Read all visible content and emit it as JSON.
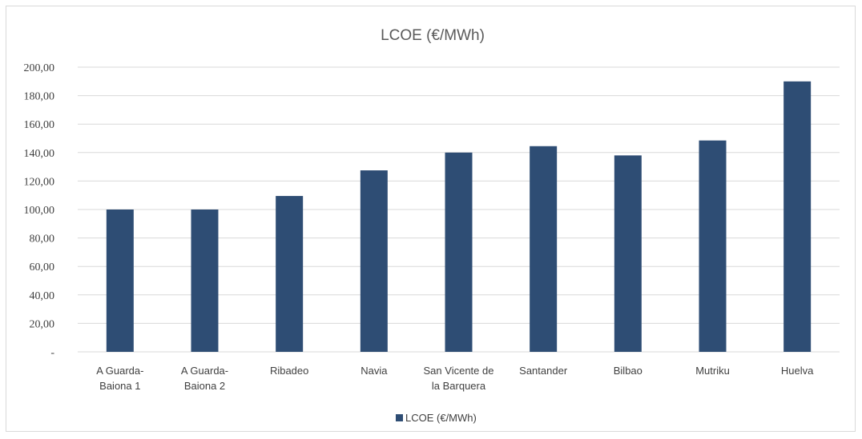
{
  "chart_data": {
    "type": "bar",
    "title": "LCOE (€/MWh)",
    "categories": [
      [
        "A Guarda-",
        "Baiona 1"
      ],
      [
        "A Guarda-",
        "Baiona 2"
      ],
      [
        "Ribadeo"
      ],
      [
        "Navia"
      ],
      [
        "San Vicente de",
        "la Barquera"
      ],
      [
        "Santander"
      ],
      [
        "Bilbao"
      ],
      [
        "Mutriku"
      ],
      [
        "Huelva"
      ]
    ],
    "series": [
      {
        "name": "LCOE (€/MWh)",
        "color": "#2e4d74",
        "values": [
          100,
          100,
          109.5,
          127.5,
          140,
          144.5,
          138,
          148.5,
          190
        ]
      }
    ],
    "ylim": [
      0,
      200
    ],
    "yticks": [
      {
        "value": 0,
        "label": "-"
      },
      {
        "value": 20,
        "label": "20,00"
      },
      {
        "value": 40,
        "label": "40,00"
      },
      {
        "value": 60,
        "label": "60,00"
      },
      {
        "value": 80,
        "label": "80,00"
      },
      {
        "value": 100,
        "label": "100,00"
      },
      {
        "value": 120,
        "label": "120,00"
      },
      {
        "value": 140,
        "label": "140,00"
      },
      {
        "value": 160,
        "label": "160,00"
      },
      {
        "value": 180,
        "label": "180,00"
      },
      {
        "value": 200,
        "label": "200,00"
      }
    ],
    "grid": true,
    "legend_position": "bottom",
    "xlabel": "",
    "ylabel": ""
  }
}
